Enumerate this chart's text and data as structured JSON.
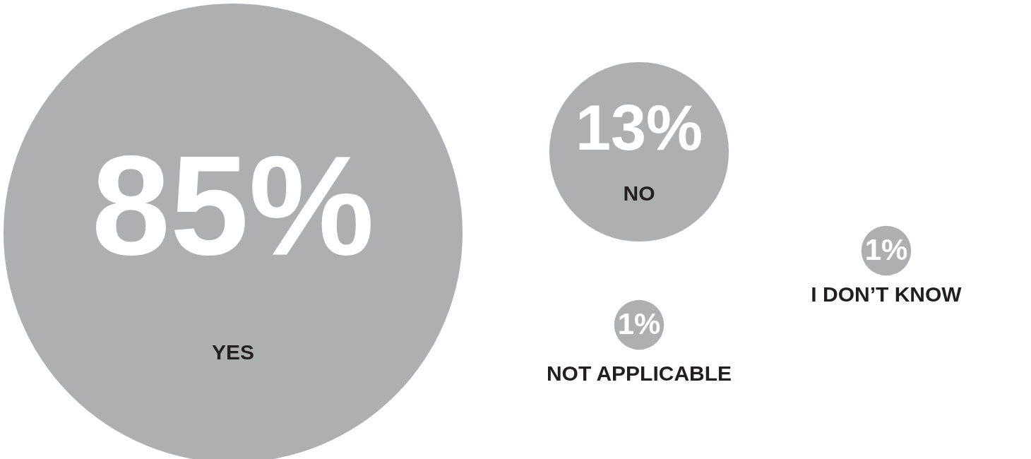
{
  "chart_data": {
    "type": "other",
    "categories": [
      "YES",
      "NO",
      "NOT APPLICABLE",
      "I DON’T KNOW"
    ],
    "values": [
      85,
      13,
      1,
      1
    ],
    "value_labels": [
      "85%",
      "13%",
      "1%",
      "1%"
    ],
    "colors": [
      "#aeafb1",
      "#aeafb1",
      "#aeafb1",
      "#aeafb1"
    ]
  }
}
